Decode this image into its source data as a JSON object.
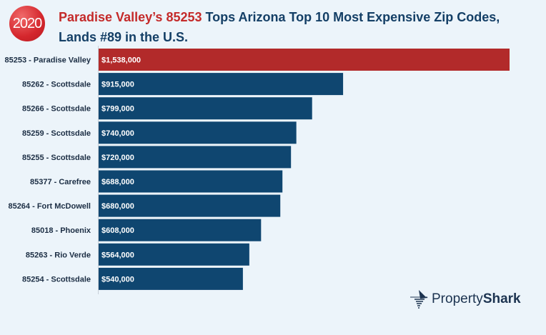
{
  "badge": "2020",
  "title": {
    "highlight": "Paradise Valley’s 85253",
    "rest": " Tops Arizona Top 10 Most Expensive Zip Codes,",
    "line2": "Lands #89 in the U.S."
  },
  "logo": {
    "part1": "Property",
    "part2": "Shark"
  },
  "colors": {
    "highlight": "#b22a2a",
    "bar": "#0f4670",
    "background": "#ecf4fa"
  },
  "chart_data": {
    "type": "bar",
    "orientation": "horizontal",
    "categories": [
      "85253 - Paradise Valley",
      "85262 - Scottsdale",
      "85266 - Scottsdale",
      "85259 - Scottsdale",
      "85255 - Scottsdale",
      "85377 - Carefree",
      "85264 - Fort McDowell",
      "85018 - Phoenix",
      "85263 - Rio Verde",
      "85254 - Scottsdale"
    ],
    "values": [
      1538000,
      915000,
      799000,
      740000,
      720000,
      688000,
      680000,
      608000,
      564000,
      540000
    ],
    "labels": [
      "$1,538,000",
      "$915,000",
      "$799,000",
      "$740,000",
      "$720,000",
      "$688,000",
      "$680,000",
      "$608,000",
      "$564,000",
      "$540,000"
    ],
    "highlighted_index": 0,
    "grid": false
  }
}
